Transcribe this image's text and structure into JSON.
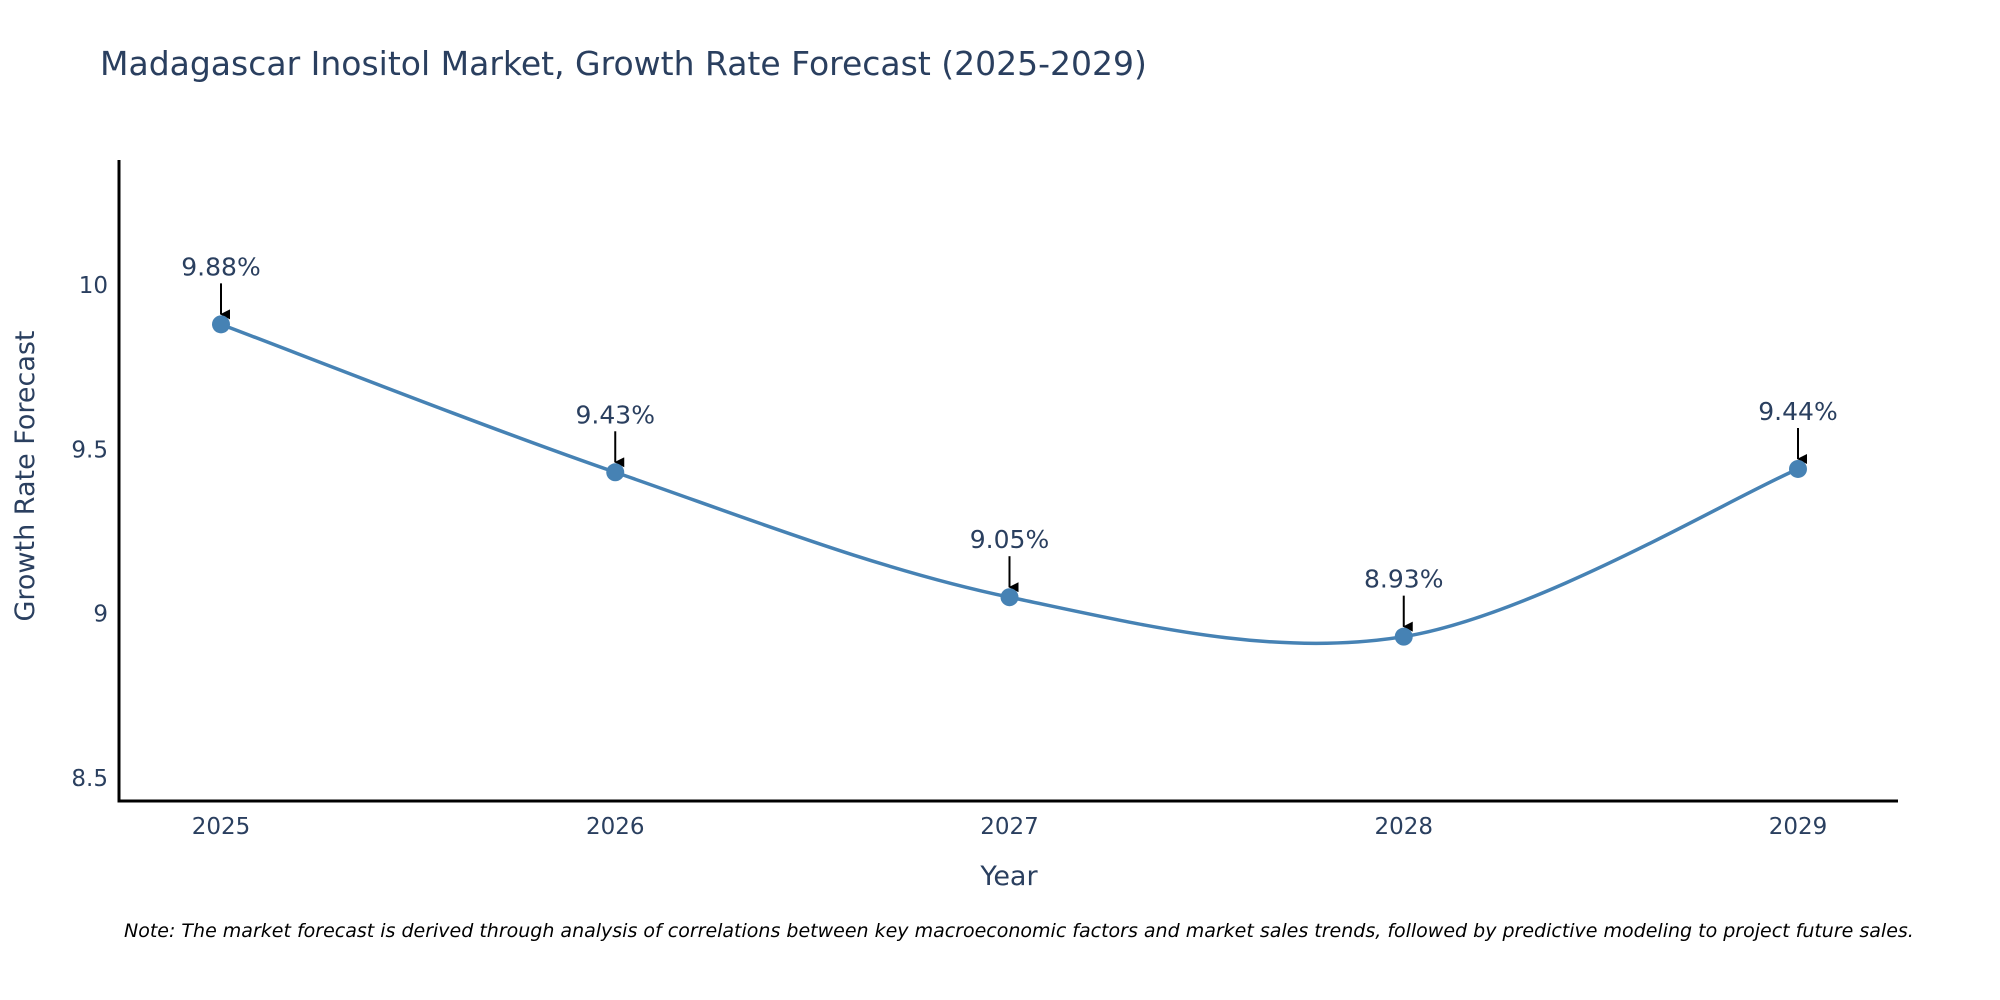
{
  "chart_data": {
    "type": "line",
    "title": "Madagascar Inositol Market, Growth Rate Forecast (2025-2029)",
    "xlabel": "Year",
    "ylabel": "Growth Rate Forecast",
    "categories": [
      "2025",
      "2026",
      "2027",
      "2028",
      "2029"
    ],
    "values": [
      9.88,
      9.43,
      9.05,
      8.93,
      9.44
    ],
    "data_labels": [
      "9.88%",
      "9.43%",
      "9.05%",
      "8.93%",
      "9.44%"
    ],
    "y_ticks": [
      8.5,
      9,
      9.5,
      10
    ],
    "y_tick_labels": [
      "8.5",
      "9",
      "9.5",
      "10"
    ],
    "ylim": [
      8.43,
      10.38
    ],
    "line_shape": "spline",
    "grid": false,
    "legend": "none",
    "colors": {
      "line": "#4682b4",
      "marker": "#4682b4",
      "axis": "#000000",
      "text": "#2a3f5f",
      "arrow": "#000000"
    },
    "note": "Note: The market forecast is derived through analysis of correlations between key macroeconomic factors and market sales trends, followed by predictive modeling to project future sales."
  }
}
